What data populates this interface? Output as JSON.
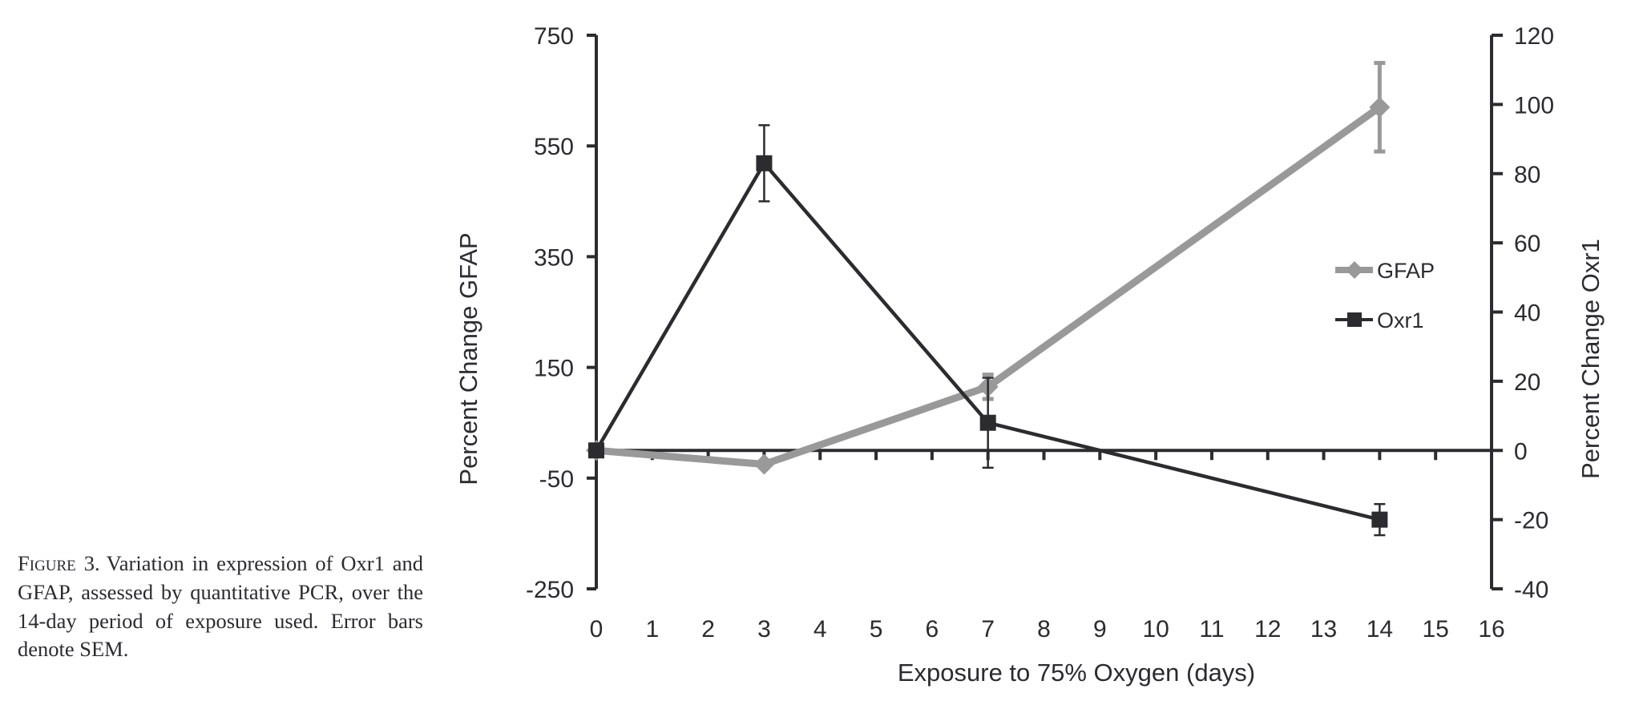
{
  "caption": {
    "label": "Figure 3.",
    "text": "Variation in expression of Oxr1 and GFAP, assessed by quantitative PCR, over the 14-day period of exposure used. Error bars denote SEM."
  },
  "chart_data": {
    "type": "line",
    "title": "",
    "xlabel": "Exposure to 75% Oxygen (days)",
    "ylabel_left": "Percent Change GFAP",
    "ylabel_right": "Percent Change Oxr1",
    "xlim": [
      0,
      16
    ],
    "x_ticks": [
      0,
      1,
      2,
      3,
      4,
      5,
      6,
      7,
      8,
      9,
      10,
      11,
      12,
      13,
      14,
      15,
      16
    ],
    "ylim_left": [
      -250,
      750
    ],
    "y_ticks_left": [
      -250,
      -50,
      150,
      350,
      550,
      750
    ],
    "ylim_right": [
      -40,
      120
    ],
    "y_ticks_right": [
      -40,
      -20,
      0,
      20,
      40,
      60,
      80,
      100,
      120
    ],
    "grid": false,
    "legend_position": "right",
    "series": [
      {
        "name": "GFAP",
        "axis": "left",
        "marker": "diamond",
        "color": "#999999",
        "x": [
          0,
          3,
          7,
          14
        ],
        "y": [
          0,
          -25,
          115,
          620
        ],
        "err": [
          0,
          0,
          22,
          80
        ]
      },
      {
        "name": "Oxr1",
        "axis": "right",
        "marker": "square",
        "color": "#2b2b30",
        "x": [
          0,
          3,
          7,
          14
        ],
        "y": [
          0,
          83,
          8,
          -20
        ],
        "err": [
          0,
          11,
          13,
          4.5
        ]
      }
    ]
  }
}
